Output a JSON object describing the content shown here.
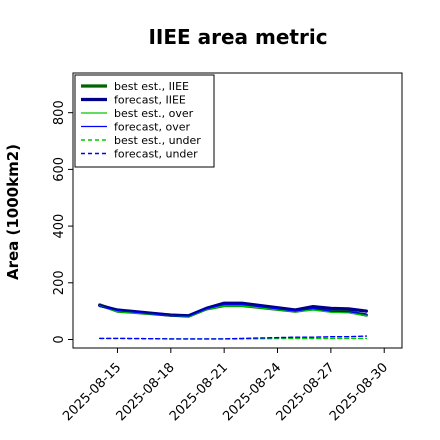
{
  "chart_data": {
    "type": "line",
    "title": "IIEE area metric",
    "xlabel": "",
    "ylabel": "Area (1000km2)",
    "xlim": [
      "2025-08-12T12:00",
      "2025-08-31"
    ],
    "ylim": [
      -30,
      940
    ],
    "x_ticks": [
      "2025-08-15",
      "2025-08-18",
      "2025-08-21",
      "2025-08-24",
      "2025-08-27",
      "2025-08-30"
    ],
    "y_ticks": [
      0,
      200,
      400,
      600,
      800
    ],
    "highlight_tick": "2025-08-21",
    "highlight_color": "#2e8b22",
    "legend_position": "top-left",
    "series": [
      {
        "name": "best est., IIEE",
        "color": "#006400",
        "style": "solid",
        "width": 3.2,
        "x": [
          "2025-08-14",
          "2025-08-15",
          "2025-08-18",
          "2025-08-19",
          "2025-08-20",
          "2025-08-21",
          "2025-08-22",
          "2025-08-25",
          "2025-08-26",
          "2025-08-27",
          "2025-08-28",
          "2025-08-29"
        ],
        "values": [
          122,
          100,
          86,
          82,
          108,
          120,
          120,
          100,
          108,
          100,
          98,
          86
        ]
      },
      {
        "name": "forecast, IIEE",
        "color": "#00008b",
        "style": "solid",
        "width": 3.2,
        "x": [
          "2025-08-14",
          "2025-08-15",
          "2025-08-18",
          "2025-08-19",
          "2025-08-20",
          "2025-08-21",
          "2025-08-22",
          "2025-08-25",
          "2025-08-26",
          "2025-08-27",
          "2025-08-28",
          "2025-08-29"
        ],
        "values": [
          120,
          104,
          86,
          84,
          110,
          128,
          128,
          104,
          116,
          110,
          108,
          100
        ]
      },
      {
        "name": "best est., over",
        "color": "#00c800",
        "style": "solid",
        "width": 1.2,
        "x": [
          "2025-08-14",
          "2025-08-15",
          "2025-08-18",
          "2025-08-19",
          "2025-08-20",
          "2025-08-21",
          "2025-08-22",
          "2025-08-25",
          "2025-08-26",
          "2025-08-27",
          "2025-08-28",
          "2025-08-29"
        ],
        "values": [
          118,
          98,
          84,
          80,
          106,
          118,
          118,
          98,
          104,
          96,
          94,
          84
        ]
      },
      {
        "name": "forecast, over",
        "color": "#0000ff",
        "style": "solid",
        "width": 1.2,
        "x": [
          "2025-08-14",
          "2025-08-15",
          "2025-08-18",
          "2025-08-19",
          "2025-08-20",
          "2025-08-21",
          "2025-08-22",
          "2025-08-25",
          "2025-08-26",
          "2025-08-27",
          "2025-08-28",
          "2025-08-29"
        ],
        "values": [
          116,
          102,
          84,
          82,
          108,
          124,
          124,
          100,
          110,
          100,
          98,
          90
        ]
      },
      {
        "name": "best est., under",
        "color": "#00c800",
        "style": "dashed",
        "width": 1.4,
        "x": [
          "2025-08-14",
          "2025-08-15",
          "2025-08-18",
          "2025-08-19",
          "2025-08-20",
          "2025-08-21",
          "2025-08-22",
          "2025-08-25",
          "2025-08-26",
          "2025-08-27",
          "2025-08-28",
          "2025-08-29"
        ],
        "values": [
          4,
          4,
          2,
          2,
          2,
          2,
          2,
          4,
          4,
          4,
          4,
          4
        ]
      },
      {
        "name": "forecast, under",
        "color": "#0000ff",
        "style": "dashed",
        "width": 1.4,
        "x": [
          "2025-08-14",
          "2025-08-15",
          "2025-08-18",
          "2025-08-19",
          "2025-08-20",
          "2025-08-21",
          "2025-08-22",
          "2025-08-25",
          "2025-08-26",
          "2025-08-27",
          "2025-08-28",
          "2025-08-29"
        ],
        "values": [
          4,
          4,
          2,
          2,
          2,
          2,
          4,
          8,
          8,
          10,
          10,
          12
        ]
      }
    ]
  }
}
